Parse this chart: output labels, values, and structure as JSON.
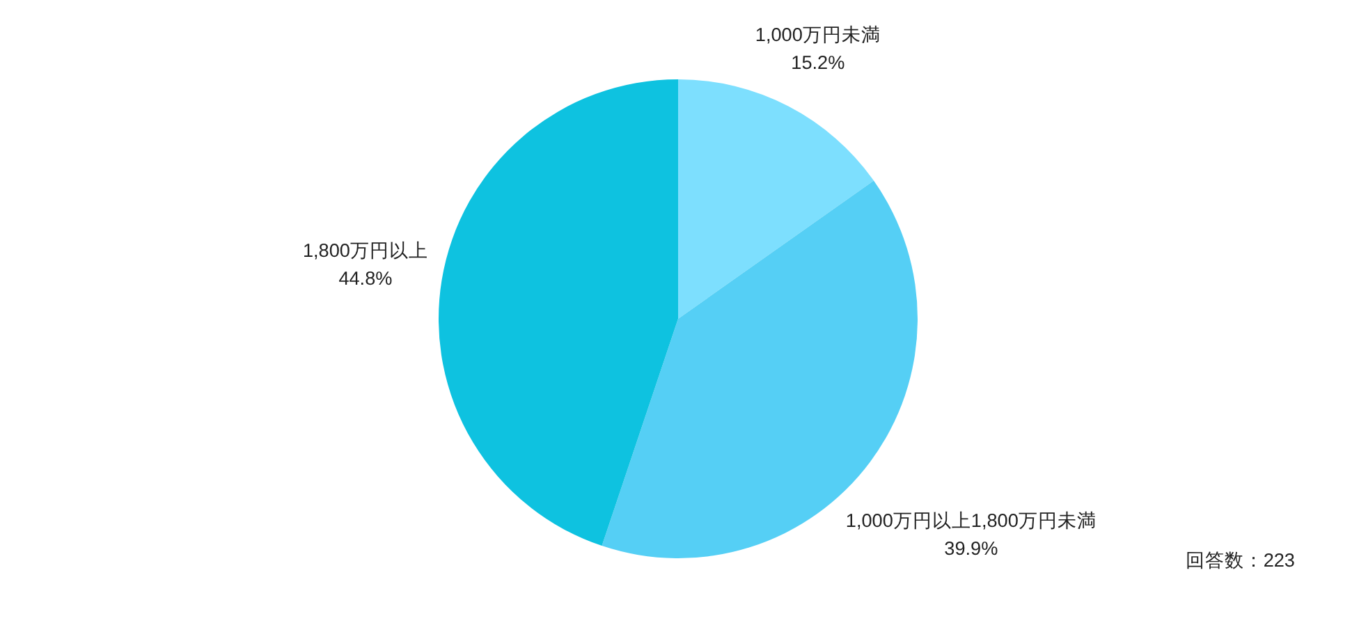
{
  "chart_data": {
    "type": "pie",
    "categories": [
      "1,000万円未満",
      "1,000万円以上1,800万円未満",
      "1,800万円以上"
    ],
    "values": [
      15.2,
      39.9,
      44.8
    ],
    "colors": [
      "#7ddffe",
      "#55cff5",
      "#0ec2e0"
    ],
    "value_labels": [
      "15.2%",
      "39.9%",
      "44.8%"
    ],
    "annotations": [
      "回答数：223"
    ]
  }
}
